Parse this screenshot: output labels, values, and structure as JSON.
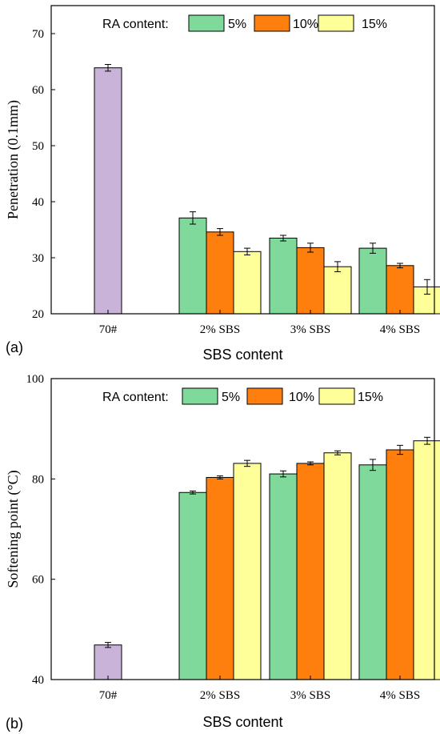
{
  "colors": {
    "base": "#c9b3d9",
    "ra_5": "#7fd99b",
    "ra_10": "#ff7f0e",
    "ra_15": "#ffff99"
  },
  "chart_data": [
    {
      "type": "bar",
      "panel_label": "(a)",
      "xlabel": "SBS content",
      "ylabel": "Penetration (0.1mm)",
      "ylim": [
        20,
        75
      ],
      "yticks": [
        20,
        30,
        40,
        50,
        60,
        70
      ],
      "categories": [
        "70#",
        "2% SBS",
        "3% SBS",
        "4% SBS"
      ],
      "legend": {
        "title": "RA content:",
        "placement": "top",
        "entries": [
          "5%",
          "10%",
          "15%"
        ]
      },
      "base": {
        "category": "70#",
        "value": 63.9,
        "error": 0.6
      },
      "series": [
        {
          "name": "5%",
          "values": [
            null,
            37.1,
            33.5,
            31.7
          ],
          "errors": [
            null,
            1.1,
            0.5,
            0.9
          ]
        },
        {
          "name": "10%",
          "values": [
            null,
            34.6,
            31.8,
            28.6
          ],
          "errors": [
            null,
            0.6,
            0.8,
            0.4
          ]
        },
        {
          "name": "15%",
          "values": [
            null,
            31.1,
            28.4,
            24.8
          ],
          "errors": [
            null,
            0.6,
            0.9,
            1.3
          ]
        }
      ]
    },
    {
      "type": "bar",
      "panel_label": "(b)",
      "xlabel": "SBS content",
      "ylabel": "Softening point (°C)",
      "ylim": [
        40,
        100
      ],
      "yticks": [
        40,
        60,
        80,
        100
      ],
      "categories": [
        "70#",
        "2% SBS",
        "3% SBS",
        "4% SBS"
      ],
      "legend": {
        "title": "RA content:",
        "placement": "top",
        "entries": [
          "5%",
          "10%",
          "15%"
        ]
      },
      "base": {
        "category": "70#",
        "value": 46.9,
        "error": 0.5
      },
      "series": [
        {
          "name": "5%",
          "values": [
            null,
            77.3,
            81.0,
            82.8
          ],
          "errors": [
            null,
            0.3,
            0.6,
            1.1
          ]
        },
        {
          "name": "10%",
          "values": [
            null,
            80.3,
            83.1,
            85.8
          ],
          "errors": [
            null,
            0.3,
            0.3,
            0.9
          ]
        },
        {
          "name": "15%",
          "values": [
            null,
            83.1,
            85.2,
            87.6
          ],
          "errors": [
            null,
            0.6,
            0.4,
            0.7
          ]
        }
      ]
    }
  ]
}
